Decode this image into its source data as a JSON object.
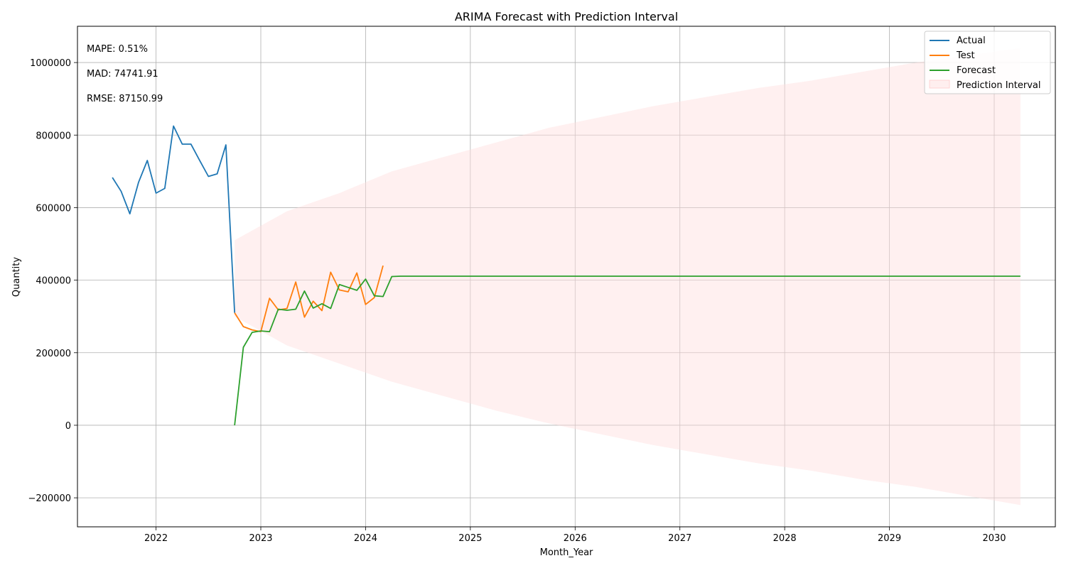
{
  "chart_data": {
    "type": "line",
    "title": "ARIMA Forecast with Prediction Interval",
    "xlabel": "Month_Year",
    "ylabel": "Quantity",
    "xlim": [
      "2021-04",
      "2030-08"
    ],
    "ylim": [
      -280000,
      1100000
    ],
    "x_ticks": [
      "2022",
      "2023",
      "2024",
      "2025",
      "2026",
      "2027",
      "2028",
      "2029",
      "2030"
    ],
    "y_ticks": [
      "−200000",
      "0",
      "200000",
      "400000",
      "600000",
      "800000",
      "1000000"
    ],
    "grid": true,
    "legend_position": "top-right",
    "annotations": [
      "MAPE: 0.51%",
      "MAD: 74741.91",
      "RMSE: 87150.99"
    ],
    "colors": {
      "actual": "#1f77b4",
      "test": "#ff7f0e",
      "forecast": "#2ca02c",
      "interval": "#ffdddd"
    },
    "series": [
      {
        "name": "Actual",
        "x": [
          "2021-08",
          "2021-09",
          "2021-10",
          "2021-11",
          "2021-12",
          "2022-01",
          "2022-02",
          "2022-03",
          "2022-04",
          "2022-05",
          "2022-06",
          "2022-07",
          "2022-08",
          "2022-09",
          "2022-10"
        ],
        "values": [
          683000,
          645000,
          583000,
          670000,
          730000,
          640000,
          653000,
          825000,
          775000,
          775000,
          730000,
          686000,
          693000,
          773000,
          310000
        ]
      },
      {
        "name": "Test",
        "x": [
          "2022-10",
          "2022-11",
          "2022-12",
          "2023-01",
          "2023-02",
          "2023-03",
          "2023-04",
          "2023-05",
          "2023-06",
          "2023-07",
          "2023-08",
          "2023-09",
          "2023-10",
          "2023-11",
          "2023-12",
          "2024-01",
          "2024-02",
          "2024-03"
        ],
        "values": [
          310000,
          272000,
          263000,
          258000,
          350000,
          318000,
          322000,
          395000,
          298000,
          342000,
          316000,
          422000,
          373000,
          368000,
          420000,
          333000,
          352000,
          440000
        ]
      },
      {
        "name": "Forecast",
        "x": [
          "2022-10",
          "2022-11",
          "2022-12",
          "2023-01",
          "2023-02",
          "2023-03",
          "2023-04",
          "2023-05",
          "2023-06",
          "2023-07",
          "2023-08",
          "2023-09",
          "2023-10",
          "2023-11",
          "2023-12",
          "2024-01",
          "2024-02",
          "2024-03",
          "2024-04",
          "2024-05",
          "2030-04"
        ],
        "values": [
          0,
          215000,
          256000,
          260000,
          258000,
          320000,
          317000,
          320000,
          370000,
          323000,
          335000,
          322000,
          388000,
          380000,
          372000,
          403000,
          357000,
          355000,
          410000,
          411000,
          411000
        ]
      }
    ],
    "prediction_interval": {
      "name": "Prediction Interval",
      "x": [
        "2022-10",
        "2023-04",
        "2023-10",
        "2024-04",
        "2024-10",
        "2025-04",
        "2025-10",
        "2026-04",
        "2026-10",
        "2027-04",
        "2027-10",
        "2028-04",
        "2028-10",
        "2029-04",
        "2029-10",
        "2030-04"
      ],
      "upper": [
        510000,
        590000,
        640000,
        700000,
        740000,
        780000,
        820000,
        850000,
        880000,
        905000,
        930000,
        950000,
        975000,
        1000000,
        1020000,
        1040000
      ],
      "lower": [
        300000,
        220000,
        170000,
        120000,
        80000,
        40000,
        5000,
        -25000,
        -55000,
        -80000,
        -105000,
        -125000,
        -150000,
        -170000,
        -195000,
        -220000
      ]
    }
  }
}
